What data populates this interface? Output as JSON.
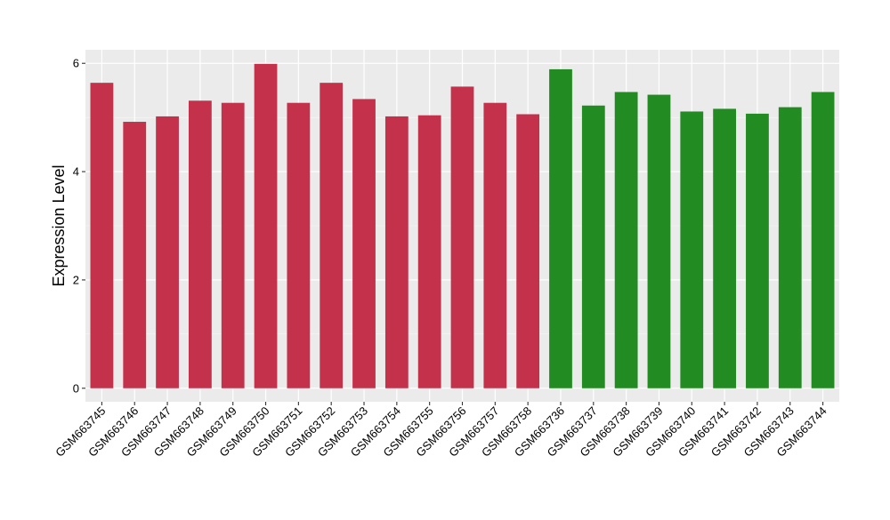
{
  "chart_data": {
    "type": "bar",
    "title": "",
    "xlabel": "",
    "ylabel": "Expression Level",
    "ylim": [
      -0.25,
      6.25
    ],
    "yticks": [
      0,
      2,
      4,
      6
    ],
    "grid": true,
    "legend": "none",
    "colors": {
      "group_a": "#c4314b",
      "group_b": "#228b22",
      "panel_background": "#ebebeb",
      "grid_major": "#ffffff",
      "axis_text": "#000000",
      "tick_mark": "#333333"
    },
    "categories": [
      "GSM663745",
      "GSM663746",
      "GSM663747",
      "GSM663748",
      "GSM663749",
      "GSM663750",
      "GSM663751",
      "GSM663752",
      "GSM663753",
      "GSM663754",
      "GSM663755",
      "GSM663756",
      "GSM663757",
      "GSM663758",
      "GSM663736",
      "GSM663737",
      "GSM663738",
      "GSM663739",
      "GSM663740",
      "GSM663741",
      "GSM663742",
      "GSM663743",
      "GSM663744"
    ],
    "values": [
      5.64,
      4.92,
      5.02,
      5.31,
      5.27,
      5.99,
      5.27,
      5.64,
      5.34,
      5.02,
      5.04,
      5.57,
      5.27,
      5.06,
      5.89,
      5.22,
      5.47,
      5.42,
      5.11,
      5.16,
      5.07,
      5.19,
      5.47
    ],
    "bar_colors": [
      "#c4314b",
      "#c4314b",
      "#c4314b",
      "#c4314b",
      "#c4314b",
      "#c4314b",
      "#c4314b",
      "#c4314b",
      "#c4314b",
      "#c4314b",
      "#c4314b",
      "#c4314b",
      "#c4314b",
      "#c4314b",
      "#228b22",
      "#228b22",
      "#228b22",
      "#228b22",
      "#228b22",
      "#228b22",
      "#228b22",
      "#228b22",
      "#228b22"
    ]
  }
}
